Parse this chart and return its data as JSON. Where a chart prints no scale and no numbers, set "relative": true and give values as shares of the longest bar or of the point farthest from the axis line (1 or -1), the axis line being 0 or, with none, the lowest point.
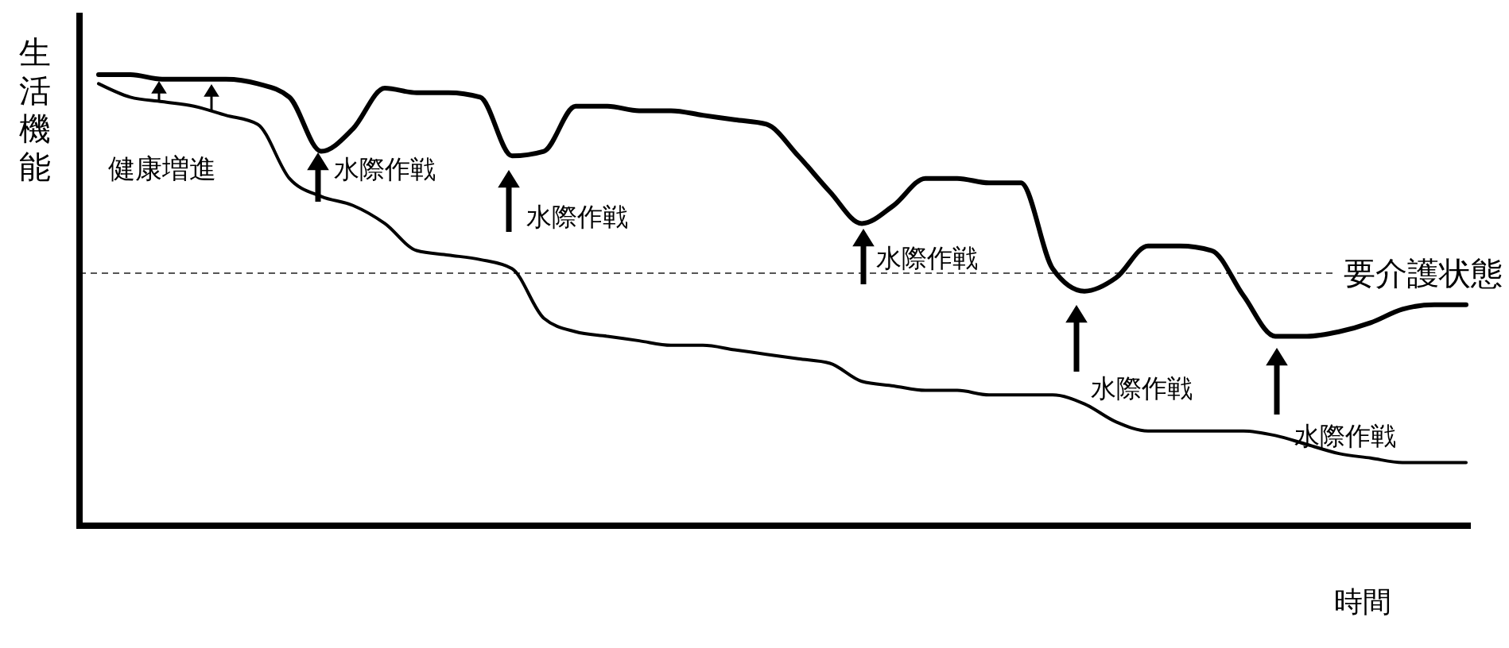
{
  "chart_data": {
    "type": "line",
    "relative": true,
    "xlabel": "時間",
    "ylabel": "生活機能",
    "categories": [
      null,
      null,
      null,
      null,
      null,
      null,
      null,
      null,
      null,
      null,
      null,
      null,
      null,
      null,
      null,
      null,
      null,
      null,
      null,
      null,
      null,
      null,
      null,
      null,
      null,
      null,
      null,
      null,
      null,
      null,
      null,
      null,
      null,
      null,
      null,
      null,
      null,
      null,
      null,
      null,
      null,
      null,
      null,
      null
    ],
    "series": [
      {
        "color": "#000000",
        "values": [
          1.0,
          1.0,
          0.99,
          0.99,
          0.99,
          0.98,
          0.95,
          0.83,
          0.88,
          0.97,
          0.96,
          0.96,
          0.95,
          0.82,
          0.83,
          0.93,
          0.93,
          0.92,
          0.92,
          0.91,
          0.9,
          0.89,
          0.82,
          0.74,
          0.67,
          0.71,
          0.77,
          0.77,
          0.76,
          0.76,
          0.57,
          0.52,
          0.55,
          0.62,
          0.62,
          0.61,
          0.51,
          0.42,
          0.42,
          0.43,
          0.45,
          0.48,
          0.49,
          0.49
        ]
      },
      {
        "color": "#000000",
        "values": [
          0.98,
          0.95,
          0.94,
          0.93,
          0.91,
          0.89,
          0.77,
          0.73,
          0.71,
          0.67,
          0.61,
          0.6,
          0.59,
          0.57,
          0.46,
          0.43,
          0.42,
          0.41,
          0.4,
          0.4,
          0.39,
          0.38,
          0.37,
          0.36,
          0.32,
          0.31,
          0.3,
          0.3,
          0.29,
          0.29,
          0.29,
          0.27,
          0.23,
          0.21,
          0.21,
          0.21,
          0.21,
          0.2,
          0.18,
          0.16,
          0.15,
          0.14,
          0.14,
          0.14
        ]
      }
    ],
    "ref_lines": [
      {
        "axis": "y",
        "value": 0.56,
        "label": "要介護状態",
        "color": "#555555",
        "line_style": "dashed"
      }
    ],
    "annotations": [
      "健康増進",
      "水際作戦",
      "水際作戦",
      "水際作戦",
      "水際作戦",
      "水際作戦"
    ]
  }
}
